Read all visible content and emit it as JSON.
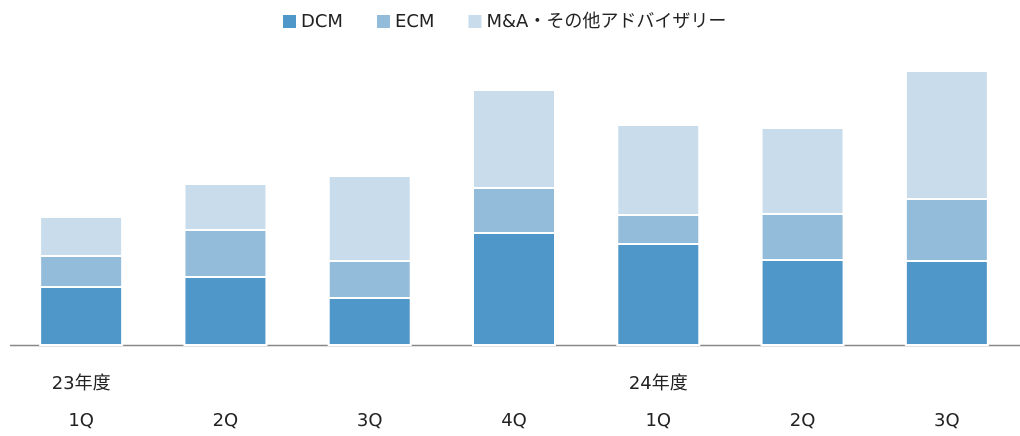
{
  "chart_data": {
    "type": "stacked_bar",
    "categories": [
      "1Q",
      "2Q",
      "3Q",
      "4Q",
      "1Q",
      "2Q",
      "3Q"
    ],
    "fiscal_years": [
      "23年度",
      null,
      null,
      null,
      "24年度",
      null,
      null
    ],
    "series": [
      {
        "name": "DCM",
        "color": "#4f96c9",
        "values": [
          58,
          68,
          47,
          112,
          101,
          85,
          84
        ]
      },
      {
        "name": "ECM",
        "color": "#93bcdb",
        "values": [
          31,
          47,
          37,
          45,
          29,
          46,
          62
        ]
      },
      {
        "name": "M&A・その他アドバイザリー",
        "color": "#c9dcec",
        "values": [
          39,
          46,
          85,
          98,
          90,
          86,
          128
        ]
      }
    ],
    "ylim": [
      0,
      300
    ],
    "legend": "top"
  }
}
